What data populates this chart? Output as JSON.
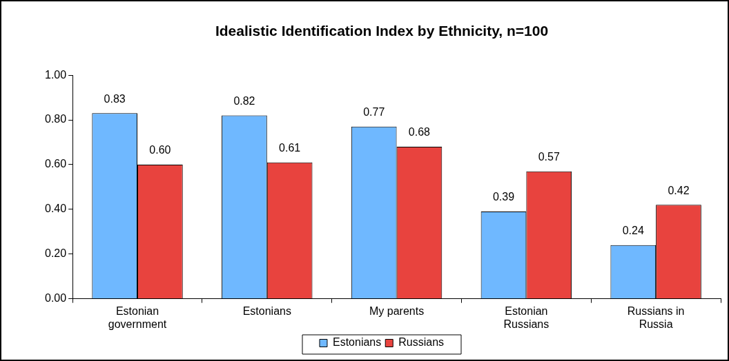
{
  "chart_data": {
    "type": "bar",
    "title": "Idealistic Identification Index by Ethnicity, n=100",
    "categories": [
      "Estonian government",
      "Estonians",
      "My parents",
      "Estonian Russians",
      "Russians in Russia"
    ],
    "series": [
      {
        "name": "Estonians",
        "color": "#6fb8ff",
        "values": [
          0.83,
          0.82,
          0.77,
          0.39,
          0.24
        ],
        "value_labels": [
          "0.83",
          "0.82",
          "0.77",
          "0.39",
          "0.24"
        ]
      },
      {
        "name": "Russians",
        "color": "#e8433e",
        "values": [
          0.6,
          0.61,
          0.68,
          0.57,
          0.42
        ],
        "value_labels": [
          "0.60",
          "0.61",
          "0.68",
          "0.57",
          "0.42"
        ]
      }
    ],
    "ylim": [
      0,
      1
    ],
    "yticks": [
      {
        "value": 0,
        "label": "0.00"
      },
      {
        "value": 0.2,
        "label": "0.20"
      },
      {
        "value": 0.4,
        "label": "0.40"
      },
      {
        "value": 0.6,
        "label": "0.60"
      },
      {
        "value": 0.8,
        "label": "0.80"
      },
      {
        "value": 1,
        "label": "1.00"
      }
    ],
    "grid": false,
    "legend": "bottom"
  }
}
